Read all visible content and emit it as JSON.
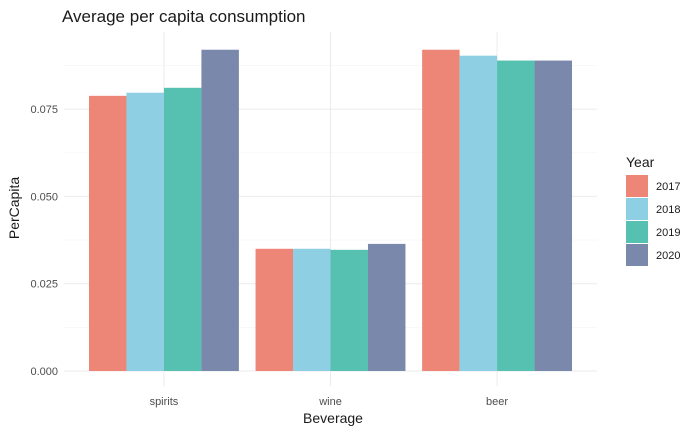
{
  "chart_data": {
    "type": "bar",
    "title": "Average per capita consumption",
    "xlabel": "Beverage",
    "ylabel": "PerCapita",
    "categories": [
      "spirits",
      "wine",
      "beer"
    ],
    "series": [
      {
        "name": "2017",
        "values": [
          0.0788,
          0.035,
          0.092
        ]
      },
      {
        "name": "2018",
        "values": [
          0.0797,
          0.035,
          0.0903
        ]
      },
      {
        "name": "2019",
        "values": [
          0.0811,
          0.0347,
          0.0889
        ]
      },
      {
        "name": "2020",
        "values": [
          0.092,
          0.0364,
          0.0889
        ]
      }
    ],
    "ylim": [
      0,
      0.0925
    ],
    "yticks": [
      0,
      0.025,
      0.05,
      0.075
    ],
    "ytick_labels": [
      "0.000",
      "0.025",
      "0.050",
      "0.075"
    ],
    "grid": true,
    "legend": {
      "title": "Year",
      "placement": "right"
    },
    "colors": {
      "2017": "#ee8677",
      "2018": "#8ecfe3",
      "2019": "#56c1b0",
      "2020": "#7a88ab"
    }
  }
}
